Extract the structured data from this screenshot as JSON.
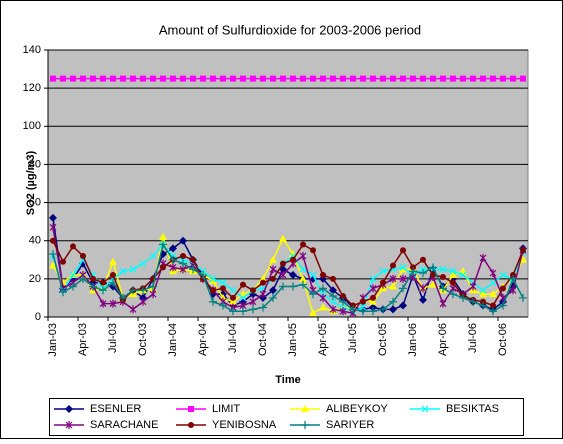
{
  "chart_data": {
    "type": "line",
    "title": "Amount of Sulfurdioxide for 2003-2006 period",
    "x_label": "Time",
    "y_label": "SO2 (µg/m3)",
    "categories": [
      "Jan-03",
      null,
      null,
      "Apr-03",
      null,
      null,
      "Jul-03",
      null,
      null,
      "Oct-03",
      null,
      null,
      "Jan-04",
      null,
      null,
      "Apr-04",
      null,
      null,
      "Jul-04",
      null,
      null,
      "Oct-04",
      null,
      null,
      "Jan-05",
      null,
      null,
      "Apr-05",
      null,
      null,
      "Jul-05",
      null,
      null,
      "Oct-05",
      null,
      null,
      "Jan-06",
      null,
      null,
      "Apr-06",
      null,
      null,
      "Jul-06",
      null,
      null,
      "Oct-06",
      null,
      null
    ],
    "ylim": [
      0,
      140
    ],
    "yticks": [
      0,
      20,
      40,
      60,
      80,
      100,
      120,
      140
    ],
    "grid": true,
    "plot_background": "#c0c0c0",
    "legend": "bottom",
    "series": [
      {
        "name": "ESENLER",
        "color": "#000080",
        "marker": "diamond",
        "values": [
          52,
          15,
          20,
          28,
          18,
          18,
          16,
          10,
          14,
          10,
          20,
          33,
          36,
          40,
          30,
          22,
          12,
          12,
          6,
          8,
          12,
          10,
          14,
          25,
          22,
          20,
          20,
          20,
          14,
          10,
          5,
          4,
          5,
          4,
          4,
          6,
          22,
          9,
          25,
          16,
          20,
          12,
          8,
          6,
          4,
          8,
          16,
          36
        ]
      },
      {
        "name": "LIMIT",
        "color": "#ff00ff",
        "marker": "square",
        "values": [
          125,
          125,
          125,
          125,
          125,
          125,
          125,
          125,
          125,
          125,
          125,
          125,
          125,
          125,
          125,
          125,
          125,
          125,
          125,
          125,
          125,
          125,
          125,
          125,
          125,
          125,
          125,
          125,
          125,
          125,
          125,
          125,
          125,
          125,
          125,
          125,
          125,
          125,
          125,
          125,
          125,
          125,
          125,
          125,
          125,
          125,
          125,
          125
        ]
      },
      {
        "name": "ALIBEYKOY",
        "color": "#ffff00",
        "marker": "triangle",
        "values": [
          27,
          18,
          22,
          22,
          14,
          15,
          29,
          10,
          12,
          14,
          15,
          42,
          24,
          25,
          24,
          22,
          19,
          10,
          8,
          12,
          14,
          20,
          30,
          41,
          33,
          20,
          2,
          5,
          3,
          5,
          4,
          9,
          8,
          15,
          16,
          25,
          25,
          15,
          17,
          14,
          22,
          24,
          14,
          12,
          12,
          16,
          20,
          30
        ]
      },
      {
        "name": "BESIKTAS",
        "color": "#00ffff",
        "marker": "x",
        "values": [
          32,
          14,
          22,
          30,
          22,
          15,
          20,
          24,
          25,
          28,
          32,
          38,
          32,
          30,
          28,
          24,
          20,
          18,
          14,
          10,
          14,
          15,
          20,
          28,
          32,
          25,
          22,
          12,
          8,
          5,
          3,
          5,
          20,
          24,
          25,
          26,
          22,
          25,
          25,
          25,
          24,
          22,
          18,
          14,
          18,
          22,
          20,
          34
        ]
      },
      {
        "name": "SARACHANE",
        "color": "#800080",
        "marker": "star",
        "values": [
          47,
          15,
          18,
          22,
          16,
          7,
          7,
          8,
          4,
          8,
          12,
          28,
          26,
          25,
          27,
          20,
          14,
          8,
          5,
          6,
          8,
          12,
          25,
          22,
          28,
          32,
          14,
          10,
          4,
          3,
          2,
          10,
          15,
          17,
          20,
          20,
          21,
          15,
          21,
          7,
          15,
          12,
          16,
          31,
          23,
          10,
          14,
          35
        ]
      },
      {
        "name": "YENIBOSNA",
        "color": "#800000",
        "marker": "circle",
        "values": [
          40,
          29,
          37,
          32,
          20,
          18,
          22,
          9,
          14,
          15,
          20,
          26,
          30,
          32,
          30,
          20,
          14,
          15,
          10,
          17,
          14,
          18,
          20,
          28,
          30,
          38,
          35,
          22,
          20,
          11,
          6,
          8,
          10,
          18,
          27,
          35,
          26,
          30,
          22,
          21,
          18,
          11,
          9,
          8,
          6,
          15,
          22,
          35
        ]
      },
      {
        "name": "SARIYER",
        "color": "#008080",
        "marker": "plus",
        "values": [
          33,
          13,
          16,
          20,
          16,
          14,
          18,
          10,
          14,
          14,
          16,
          38,
          30,
          28,
          25,
          22,
          8,
          6,
          3,
          3,
          4,
          5,
          10,
          16,
          16,
          17,
          12,
          15,
          11,
          8,
          4,
          3,
          3,
          4,
          8,
          15,
          24,
          23,
          26,
          15,
          12,
          10,
          8,
          6,
          3,
          6,
          20,
          10
        ]
      }
    ]
  }
}
